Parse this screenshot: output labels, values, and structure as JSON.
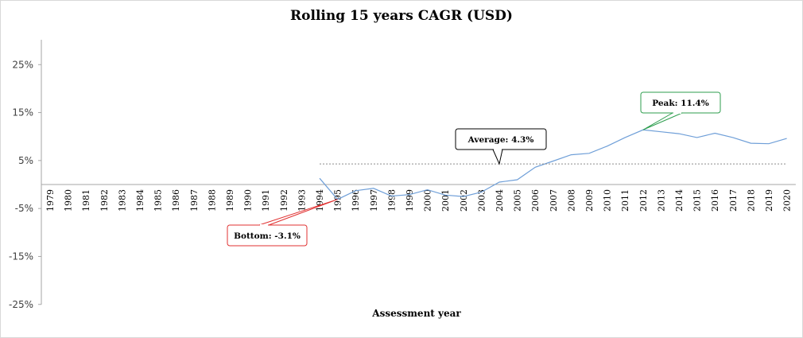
{
  "chart_data": {
    "type": "line",
    "title": "Rolling 15 years CAGR (USD)",
    "xlabel": "Assessment year",
    "ylabel": "",
    "ylim": [
      -25,
      30
    ],
    "y_ticks": [
      "25%",
      "15%",
      "5%",
      "-5%",
      "-15%",
      "-25%"
    ],
    "y_tick_values": [
      25,
      15,
      5,
      -5,
      -15,
      -25
    ],
    "categories": [
      "1979",
      "1980",
      "1981",
      "1982",
      "1983",
      "1984",
      "1985",
      "1986",
      "1987",
      "1988",
      "1989",
      "1990",
      "1991",
      "1992",
      "1993",
      "1994",
      "1995",
      "1996",
      "1997",
      "1998",
      "1999",
      "2000",
      "2001",
      "2002",
      "2003",
      "2004",
      "2005",
      "2006",
      "2007",
      "2008",
      "2009",
      "2010",
      "2011",
      "2012",
      "2013",
      "2014",
      "2015",
      "2016",
      "2017",
      "2018",
      "2019",
      "2020"
    ],
    "series": [
      {
        "values": [
          null,
          null,
          null,
          null,
          null,
          null,
          null,
          null,
          null,
          null,
          null,
          null,
          null,
          null,
          null,
          1.3,
          -3.1,
          -1.3,
          -0.8,
          -2.4,
          -2.1,
          -1.1,
          -2.2,
          -2.5,
          -1.6,
          0.5,
          1.0,
          3.6,
          4.9,
          6.2,
          6.5,
          8.0,
          9.8,
          11.4,
          11.0,
          10.6,
          9.8,
          10.7,
          9.8,
          8.6,
          8.5,
          9.6
        ],
        "color": "#6f9fd8"
      },
      {
        "values": [
          null,
          null,
          null,
          null,
          null,
          null,
          null,
          null,
          null,
          null,
          null,
          null,
          null,
          null,
          null,
          4.3,
          4.3,
          4.3,
          4.3,
          4.3,
          4.3,
          4.3,
          4.3,
          4.3,
          4.3,
          4.3,
          4.3,
          4.3,
          4.3,
          4.3,
          4.3,
          4.3,
          4.3,
          4.3,
          4.3,
          4.3,
          4.3,
          4.3,
          4.3,
          4.3,
          4.3,
          4.3
        ],
        "color": "#8c8c8c",
        "dashed": true
      }
    ],
    "annotations": [
      {
        "text": "Peak: 11.4%",
        "category": "2012",
        "value": 11.4,
        "border": "#2e9e4e"
      },
      {
        "text": "Average: 4.3%",
        "category": "2004",
        "value": 4.3,
        "border": "#000000"
      },
      {
        "text": "Bottom: -3.1%",
        "category": "1995",
        "value": -3.1,
        "border": "#e03030"
      }
    ],
    "grid": false
  }
}
